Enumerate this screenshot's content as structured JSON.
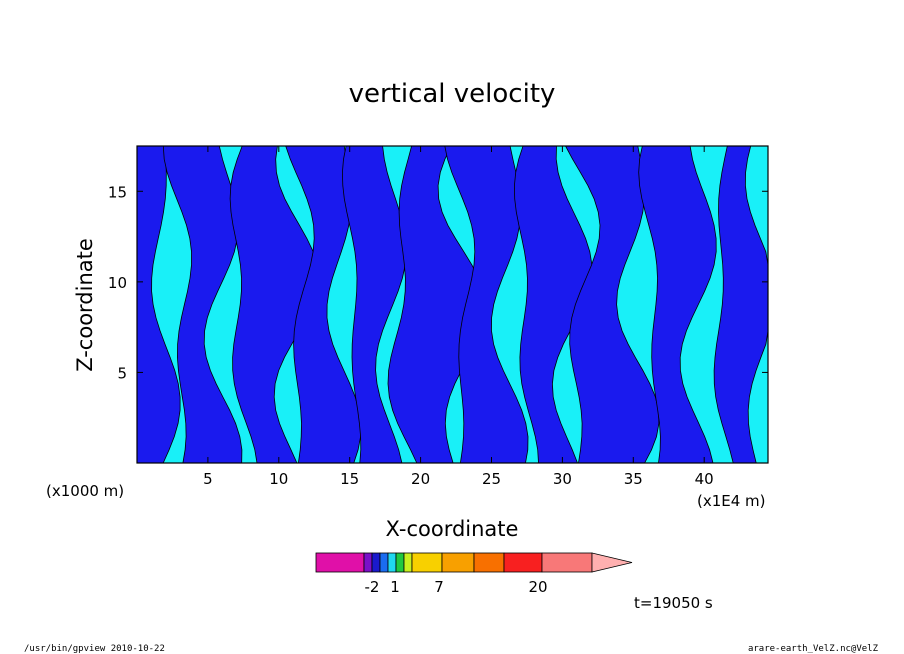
{
  "chart_data": {
    "type": "heatmap",
    "title": "vertical velocity",
    "xlabel": "X-coordinate",
    "ylabel": "Z-coordinate",
    "x_unit_left": "(x1000 m)",
    "x_unit_right": "(x1E4 m)",
    "xlim": [
      0,
      44.5
    ],
    "ylim": [
      0,
      17.5
    ],
    "x_ticks": [
      5,
      10,
      15,
      20,
      25,
      30,
      35,
      40
    ],
    "y_ticks": [
      5,
      10,
      15
    ],
    "colorbar": {
      "colors": [
        "#e010a8",
        "#7a10c8",
        "#1a1acc",
        "#1a6cf0",
        "#20d8f0",
        "#20c840",
        "#c8f020",
        "#f8d000",
        "#f8a000",
        "#f87000",
        "#f82020",
        "#f87878",
        "#ffb0b0"
      ],
      "labels": [
        "-2",
        "1",
        "7",
        "20"
      ]
    },
    "fields": {
      "positive_color": "#1a1aee",
      "negative_color": "#19f0f8"
    },
    "time_label": "t=19050 s"
  },
  "footer": {
    "left": "/usr/bin/gpview   2010-10-22",
    "right": "arare-earth_VelZ.nc@VelZ"
  }
}
